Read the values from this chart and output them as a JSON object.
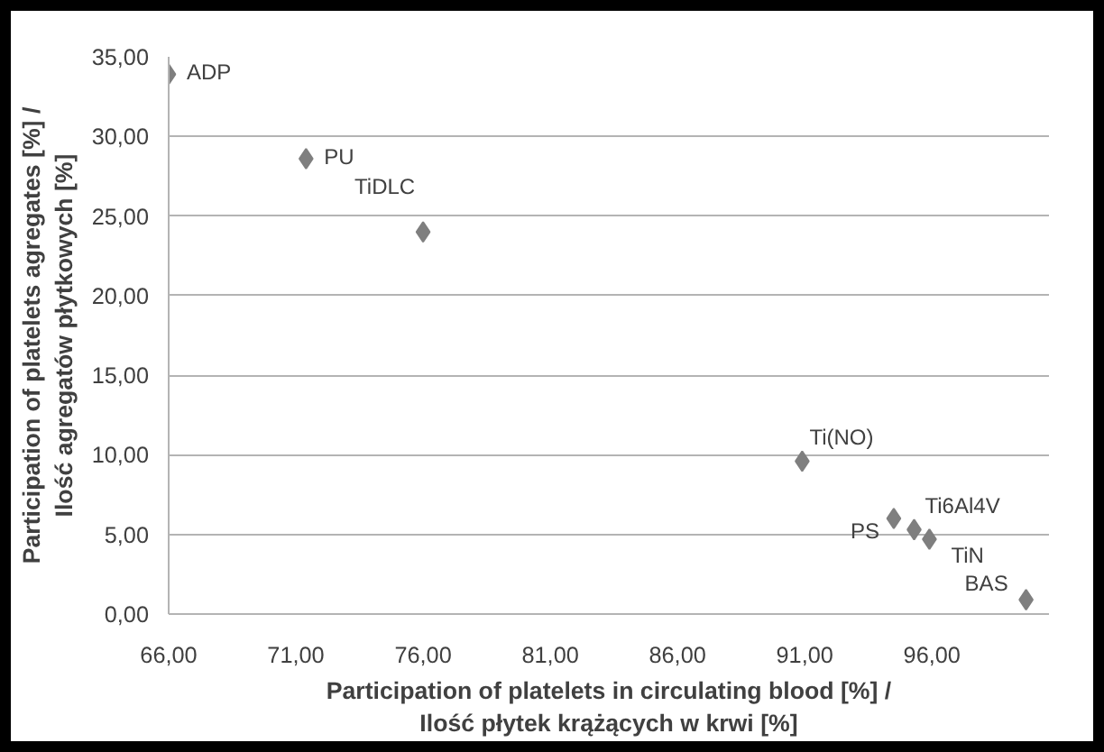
{
  "chart_data": {
    "type": "scatter",
    "xlabel": "Participation of platelets in circulating blood [%] /\nIlość płytek krążących w krwi [%]",
    "ylabel": "Participation of platelets agregates [%] /\nIlość agregatów płytkowych [%]",
    "x": [
      66.0,
      71.4,
      76.0,
      90.9,
      94.5,
      95.3,
      95.9,
      99.7
    ],
    "series": [
      {
        "color": "#7f7f7f",
        "values": [
          33.9,
          28.6,
          24.0,
          9.6,
          6.0,
          5.3,
          4.7,
          0.9
        ]
      }
    ],
    "annotations": [
      {
        "text": "ADP",
        "x": 66.0,
        "y": 33.9
      },
      {
        "text": "PU",
        "x": 71.4,
        "y": 28.6
      },
      {
        "text": "TiDLC",
        "x": 76.0,
        "y": 24.0
      },
      {
        "text": "Ti(NO)",
        "x": 90.9,
        "y": 9.6
      },
      {
        "text": "PS",
        "x": 94.5,
        "y": 6.0
      },
      {
        "text": "Ti6Al4V",
        "x": 95.3,
        "y": 5.3
      },
      {
        "text": "TiN",
        "x": 95.9,
        "y": 4.7
      },
      {
        "text": "BAS",
        "x": 99.7,
        "y": 0.9
      }
    ],
    "xlim": [
      66,
      100.6
    ],
    "ylim": [
      0,
      35
    ],
    "xticks": [
      {
        "value": 66,
        "label": "66,00"
      },
      {
        "value": 71,
        "label": "71,00"
      },
      {
        "value": 76,
        "label": "76,00"
      },
      {
        "value": 81,
        "label": "81,00"
      },
      {
        "value": 86,
        "label": "86,00"
      },
      {
        "value": 91,
        "label": "91,00"
      },
      {
        "value": 96,
        "label": "96,00"
      }
    ],
    "yticks": [
      {
        "value": 0,
        "label": "0,00"
      },
      {
        "value": 5,
        "label": "5,00"
      },
      {
        "value": 10,
        "label": "10,00"
      },
      {
        "value": 15,
        "label": "15,00"
      },
      {
        "value": 20,
        "label": "20,00"
      },
      {
        "value": 25,
        "label": "25,00"
      },
      {
        "value": 30,
        "label": "30,00"
      },
      {
        "value": 35,
        "label": "35,00"
      }
    ],
    "grid": "y",
    "marker": "diamond"
  }
}
